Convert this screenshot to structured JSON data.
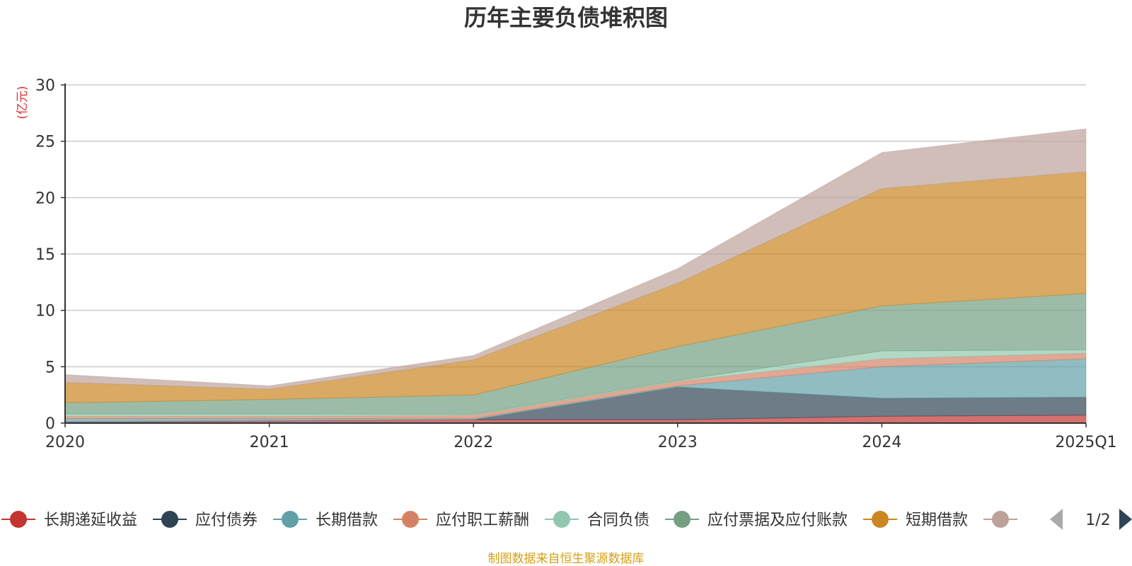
{
  "chart_data": {
    "type": "area",
    "stacked": true,
    "title": "历年主要负债堆积图",
    "ylabel": "亿元",
    "ylim": [
      0,
      30
    ],
    "yticks": [
      0,
      5,
      10,
      15,
      20,
      25,
      30
    ],
    "categories": [
      "2020",
      "2021",
      "2022",
      "2023",
      "2024",
      "2025Q1"
    ],
    "grid": true,
    "legend_position": "bottom",
    "series": [
      {
        "name": "长期递延收益",
        "color": "#c23531",
        "values": [
          0.1,
          0.2,
          0.3,
          0.3,
          0.6,
          0.7
        ]
      },
      {
        "name": "应付债券",
        "color": "#2f4554",
        "values": [
          0.0,
          0.0,
          0.0,
          2.9,
          1.6,
          1.6
        ]
      },
      {
        "name": "长期借款",
        "color": "#61a0a8",
        "values": [
          0.3,
          0.2,
          0.1,
          0.1,
          2.8,
          3.4
        ]
      },
      {
        "name": "应付职工薪酬",
        "color": "#d48265",
        "values": [
          0.2,
          0.2,
          0.3,
          0.4,
          0.7,
          0.5
        ]
      },
      {
        "name": "合同负债",
        "color": "#91c7ae",
        "values": [
          0.2,
          0.2,
          0.1,
          0.1,
          0.7,
          0.3
        ]
      },
      {
        "name": "应付票据及应付账款",
        "color": "#749f83",
        "values": [
          1.0,
          1.3,
          1.7,
          3.0,
          4.0,
          5.0
        ]
      },
      {
        "name": "短期借款",
        "color": "#ca8622",
        "values": [
          1.8,
          0.9,
          3.1,
          5.6,
          10.4,
          10.8
        ]
      },
      {
        "name": "",
        "color": "#bda29a",
        "values": [
          0.7,
          0.3,
          0.4,
          1.3,
          3.2,
          3.8
        ]
      }
    ],
    "legend_page": "1/2"
  },
  "source_note": "制图数据来自恒生聚源数据库"
}
